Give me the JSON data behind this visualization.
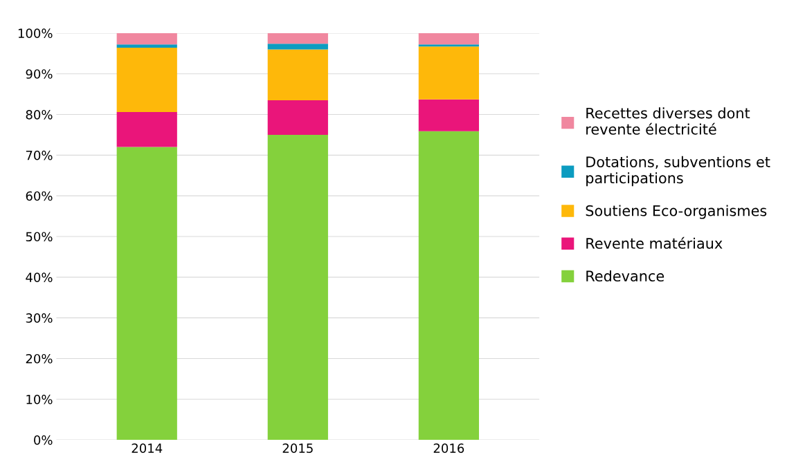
{
  "chart_data": {
    "type": "bar",
    "stacked": true,
    "categories": [
      "2014",
      "2015",
      "2016"
    ],
    "series": [
      {
        "name": "Redevance",
        "color": "#84d13c",
        "values": [
          72.0,
          75.0,
          75.9
        ]
      },
      {
        "name": "Revente matériaux",
        "color": "#ea157a",
        "values": [
          8.6,
          8.5,
          7.8
        ]
      },
      {
        "name": "Soutiens Eco-organismes",
        "color": "#feb80a",
        "values": [
          15.8,
          12.5,
          13.0
        ]
      },
      {
        "name": "Dotations, subventions et\nparticipations",
        "color": "#0c9cc0",
        "values": [
          0.8,
          1.4,
          0.5
        ]
      },
      {
        "name": "Recettes diverses dont\nrevente électricité",
        "color": "#f0879f",
        "values": [
          2.8,
          2.6,
          2.8
        ]
      }
    ],
    "ylim": [
      0,
      100
    ],
    "yticks": [
      {
        "value": 0,
        "label": "0%"
      },
      {
        "value": 10,
        "label": "10%"
      },
      {
        "value": 20,
        "label": "20%"
      },
      {
        "value": 30,
        "label": "30%"
      },
      {
        "value": 40,
        "label": "40%"
      },
      {
        "value": 50,
        "label": "50%"
      },
      {
        "value": 60,
        "label": "60%"
      },
      {
        "value": 70,
        "label": "70%"
      },
      {
        "value": 80,
        "label": "80%"
      },
      {
        "value": 90,
        "label": "90%"
      },
      {
        "value": 100,
        "label": "100%"
      }
    ],
    "grid": "y",
    "legend": "right"
  }
}
